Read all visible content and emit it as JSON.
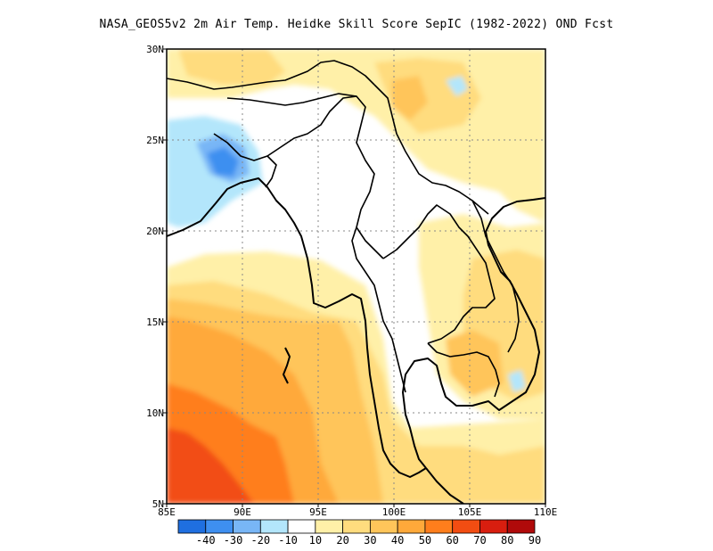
{
  "title": "NASA_GEOS5v2  2m Air Temp. Heidke Skill Score SepIC (1982-2022) OND Fcst",
  "map": {
    "lon_range": [
      85,
      110
    ],
    "lat_range": [
      5,
      30
    ],
    "x_ticks": [
      "85E",
      "90E",
      "95E",
      "100E",
      "105E",
      "110E"
    ],
    "y_ticks": [
      "5N",
      "10N",
      "15N",
      "20N",
      "25N",
      "30N"
    ],
    "gridlines": "dotted"
  },
  "colorbar": {
    "labels": [
      "-40",
      "-30",
      "-20",
      "-10",
      "10",
      "20",
      "30",
      "40",
      "50",
      "60",
      "70",
      "80",
      "90"
    ],
    "colors": [
      "#1f6fe0",
      "#3e8ff0",
      "#78b6f6",
      "#b3e6fb",
      "#ffffff",
      "#fff0a8",
      "#ffdc7e",
      "#ffc55a",
      "#ffa93a",
      "#ff7e1c",
      "#f24d12",
      "#d81e0f",
      "#b00a0a"
    ]
  }
}
